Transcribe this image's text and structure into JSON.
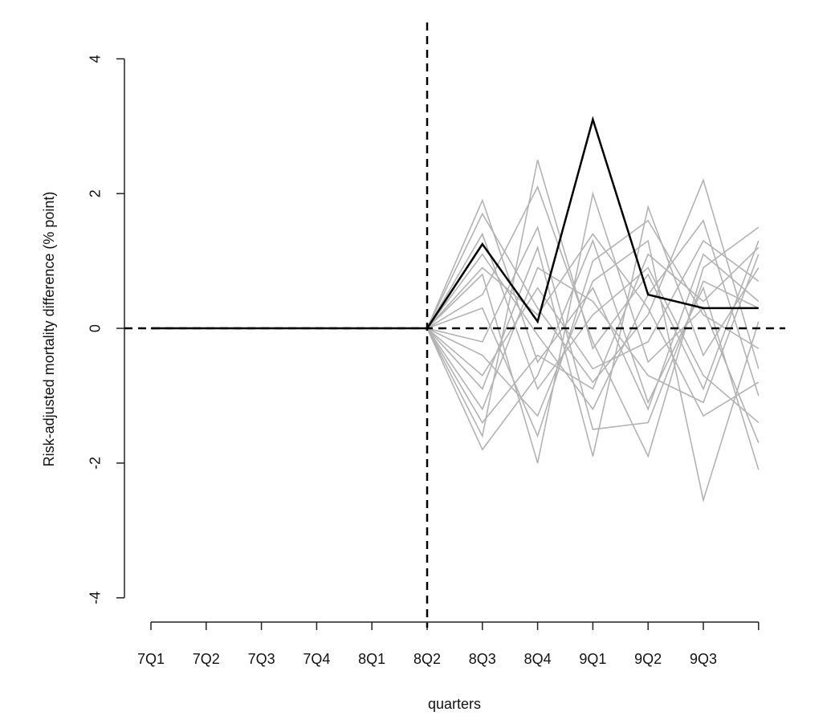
{
  "chart_data": {
    "type": "line",
    "ylabel": "Risk-adjusted mortality difference (% point)",
    "xlabel": "quarters",
    "categories": [
      "7Q1",
      "7Q2",
      "7Q3",
      "7Q4",
      "8Q1",
      "8Q2",
      "8Q3",
      "8Q4",
      "9Q1",
      "9Q2",
      "9Q3",
      null
    ],
    "ylim": [
      -4.36,
      4.54
    ],
    "yticks": [
      -4,
      -2,
      0,
      2,
      4
    ],
    "hline": 0,
    "vline": "8Q2",
    "series": [
      {
        "color": "#b3b3b3",
        "values": [
          0,
          0,
          0,
          0,
          0,
          0,
          1.9,
          -0.5,
          0.6,
          -1.2,
          1.1,
          0.4
        ]
      },
      {
        "color": "#b3b3b3",
        "values": [
          0,
          0,
          0,
          0,
          0,
          0,
          -1.6,
          2.5,
          -0.3,
          0.8,
          -0.9,
          1.3
        ]
      },
      {
        "color": "#b3b3b3",
        "values": [
          0,
          0,
          0,
          0,
          0,
          0,
          0.8,
          -2.0,
          2.0,
          -0.5,
          0.3,
          -1.7
        ]
      },
      {
        "color": "#b3b3b3",
        "values": [
          0,
          0,
          0,
          0,
          0,
          0,
          -0.9,
          1.2,
          -1.9,
          1.8,
          -0.4,
          0.9
        ]
      },
      {
        "color": "#b3b3b3",
        "values": [
          0,
          0,
          0,
          0,
          0,
          0,
          1.7,
          0.3,
          -0.8,
          0.2,
          2.2,
          -0.6
        ]
      },
      {
        "color": "#b3b3b3",
        "values": [
          0,
          0,
          0,
          0,
          0,
          0,
          -1.8,
          -0.7,
          1.3,
          -1.1,
          0.6,
          -2.1
        ]
      },
      {
        "color": "#b3b3b3",
        "values": [
          0,
          0,
          0,
          0,
          0,
          0,
          0.5,
          2.1,
          -0.2,
          -1.9,
          0.9,
          1.5
        ]
      },
      {
        "color": "#b3b3b3",
        "values": [
          0,
          0,
          0,
          0,
          0,
          0,
          -0.4,
          -1.3,
          0.7,
          1.3,
          -2.55,
          0.1
        ]
      },
      {
        "color": "#b3b3b3",
        "values": [
          0,
          0,
          0,
          0,
          0,
          0,
          1.1,
          -0.1,
          -1.2,
          0.5,
          1.6,
          -1.0
        ]
      },
      {
        "color": "#b3b3b3",
        "values": [
          0,
          0,
          0,
          0,
          0,
          0,
          -1.2,
          0.9,
          0.4,
          -0.7,
          -1.1,
          1.1
        ]
      },
      {
        "color": "#b3b3b3",
        "values": [
          0,
          0,
          0,
          0,
          0,
          0,
          0.3,
          -1.6,
          1.0,
          1.6,
          0.2,
          -0.3
        ]
      },
      {
        "color": "#b3b3b3",
        "values": [
          0,
          0,
          0,
          0,
          0,
          0,
          -0.7,
          0.6,
          -0.6,
          -0.2,
          1.3,
          0.7
        ]
      },
      {
        "color": "#b3b3b3",
        "values": [
          0,
          0,
          0,
          0,
          0,
          0,
          1.4,
          -0.9,
          0.2,
          0.9,
          -0.7,
          -1.4
        ]
      },
      {
        "color": "#b3b3b3",
        "values": [
          0,
          0,
          0,
          0,
          0,
          0,
          -0.2,
          1.5,
          -1.5,
          -1.4,
          0.7,
          0.3
        ]
      },
      {
        "color": "#b3b3b3",
        "values": [
          0,
          0,
          0,
          0,
          0,
          0,
          0.9,
          0.2,
          1.4,
          0.3,
          -1.3,
          -0.8
        ]
      },
      {
        "color": "#b3b3b3",
        "values": [
          0,
          0,
          0,
          0,
          0,
          0,
          -1.4,
          -0.4,
          -0.9,
          1.1,
          0.4,
          1.2
        ]
      },
      {
        "color": "#000000",
        "values": [
          0,
          0,
          0,
          0,
          0,
          0,
          1.25,
          0.1,
          3.1,
          0.5,
          0.3,
          0.3
        ]
      }
    ]
  }
}
